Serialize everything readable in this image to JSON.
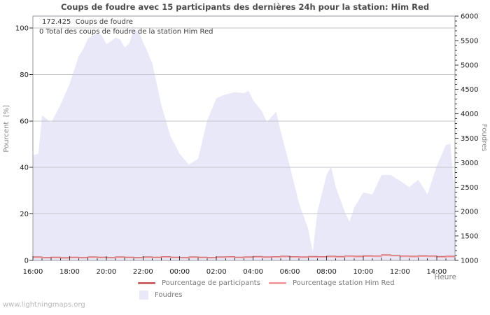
{
  "title": "Coups de foudre avec 15 participants des dernières 24h pour la station: Him Red",
  "watermark": "www.lightningmaps.org",
  "annotation": {
    "line1": "172.425  Coups de foudre",
    "line2": "0 Total des coups de foudre de la station Him Red"
  },
  "legend": {
    "items": [
      {
        "label": "Pourcentage de participants",
        "swatch": "line",
        "color": "#cc6666"
      },
      {
        "label": "Pourcentage station Him Red",
        "swatch": "line",
        "color": "#f0a0a0"
      },
      {
        "label": "Foudres",
        "swatch": "area",
        "color": "#e8e8f8"
      }
    ]
  },
  "chart_data": {
    "type": "area",
    "title": "Coups de foudre avec 15 participants des dernières 24h pour la station: Him Red",
    "grid": "horizontal-only",
    "x_axis": {
      "label": "Heure",
      "range": [
        0,
        23
      ],
      "minor_step_hours": 0.5,
      "ticks": [
        {
          "h": 0,
          "label": "16:00"
        },
        {
          "h": 2,
          "label": "18:00"
        },
        {
          "h": 4,
          "label": "20:00"
        },
        {
          "h": 6,
          "label": "22:00"
        },
        {
          "h": 8,
          "label": "00:00"
        },
        {
          "h": 10,
          "label": "02:00"
        },
        {
          "h": 12,
          "label": "04:00"
        },
        {
          "h": 14,
          "label": "06:00"
        },
        {
          "h": 16,
          "label": "08:00"
        },
        {
          "h": 18,
          "label": "10:00"
        },
        {
          "h": 20,
          "label": "12:00"
        },
        {
          "h": 22,
          "label": "14:00"
        }
      ]
    },
    "left_axis": {
      "label": "Pourcent  [%]",
      "range": [
        0,
        100
      ],
      "ticks": [
        0,
        20,
        40,
        60,
        80,
        100
      ]
    },
    "right_axis": {
      "label": "Foudres",
      "range": [
        1000,
        6000
      ],
      "major_step": 500,
      "minor_step": 100,
      "ticks": [
        1000,
        1500,
        2000,
        2500,
        3000,
        3500,
        4000,
        4500,
        5000,
        5500,
        6000
      ]
    },
    "series": [
      {
        "name": "Foudres",
        "type": "area",
        "axis": "right",
        "color": "#e8e8f8",
        "x": [
          0,
          0.3,
          0.5,
          1,
          1.5,
          2,
          2.5,
          2.75,
          3,
          3.5,
          3.75,
          4,
          4.25,
          4.5,
          4.75,
          5,
          5.25,
          5.5,
          5.75,
          6,
          6.25,
          6.5,
          7,
          7.5,
          8,
          8.5,
          9,
          9.5,
          10,
          10.5,
          11,
          11.5,
          11.75,
          12,
          12.5,
          12.75,
          13,
          13.25,
          13.5,
          14,
          14.5,
          15,
          15.25,
          15.5,
          16,
          16.25,
          16.5,
          17,
          17.25,
          17.5,
          18,
          18.5,
          19,
          19.5,
          20,
          20.5,
          21,
          21.5,
          22,
          22.5,
          22.75,
          23
        ],
        "values": [
          3150,
          3180,
          3970,
          3820,
          4180,
          4610,
          5180,
          5330,
          5540,
          5660,
          5610,
          5430,
          5480,
          5560,
          5520,
          5360,
          5440,
          5730,
          5690,
          5470,
          5260,
          5040,
          4180,
          3540,
          3180,
          2960,
          3080,
          3870,
          4320,
          4400,
          4440,
          4420,
          4470,
          4280,
          4040,
          3820,
          3940,
          4040,
          3650,
          2930,
          2170,
          1640,
          1170,
          1990,
          2750,
          2920,
          2500,
          1990,
          1790,
          2075,
          2390,
          2350,
          2750,
          2750,
          2630,
          2500,
          2650,
          2350,
          2930,
          3360,
          3390,
          2270
        ]
      },
      {
        "name": "Pourcentage de participants",
        "type": "line",
        "axis": "left",
        "color": "#cc6666",
        "x_start": 0,
        "x_step": 0.5,
        "values": [
          1.5,
          1.3,
          1.4,
          1.2,
          1.4,
          1.3,
          1.5,
          1.4,
          1.3,
          1.5,
          1.4,
          1.3,
          1.5,
          1.4,
          1.6,
          1.4,
          1.3,
          1.5,
          1.4,
          1.3,
          1.5,
          1.6,
          1.4,
          1.5,
          1.7,
          1.5,
          1.6,
          1.8,
          1.6,
          1.5,
          1.7,
          1.6,
          1.8,
          1.7,
          1.9,
          1.8,
          2.0,
          1.9,
          2.4,
          2.2,
          1.9,
          1.8,
          2.0,
          1.9,
          1.7,
          1.8,
          2.0
        ]
      },
      {
        "name": "Pourcentage station Him Red",
        "type": "line",
        "axis": "left",
        "color": "#f0a0a0",
        "x_start": 0,
        "x_step": 0.5,
        "values": [
          1.2,
          1.0,
          1.1,
          0.9,
          1.1,
          1.0,
          1.2,
          1.1,
          1.0,
          1.2,
          1.1,
          1.0,
          1.2,
          1.1,
          1.3,
          1.1,
          1.0,
          1.2,
          1.1,
          1.0,
          1.2,
          1.3,
          1.1,
          1.2,
          1.4,
          1.2,
          1.3,
          1.5,
          1.3,
          1.2,
          1.4,
          1.3,
          1.5,
          1.4,
          1.6,
          1.5,
          1.7,
          1.6,
          2.1,
          1.9,
          1.6,
          1.5,
          1.7,
          1.6,
          1.4,
          1.5,
          1.7
        ]
      }
    ]
  }
}
